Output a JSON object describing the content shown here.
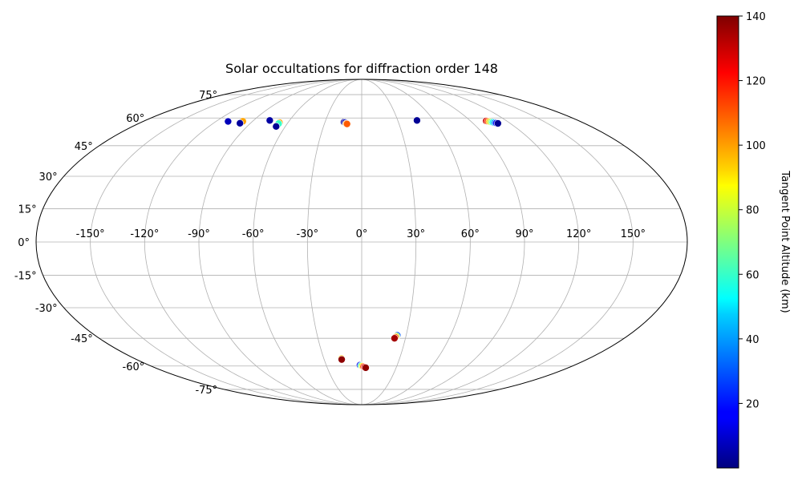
{
  "chart_data": {
    "type": "scatter",
    "projection": "mollweide",
    "title": "Solar occultations for diffraction order 148",
    "lon_ticks": [
      "-150°",
      "-120°",
      "-90°",
      "-60°",
      "-30°",
      "0°",
      "30°",
      "60°",
      "90°",
      "120°",
      "150°"
    ],
    "lon_tick_values": [
      -150,
      -120,
      -90,
      -60,
      -30,
      0,
      30,
      60,
      90,
      120,
      150
    ],
    "lat_ticks": [
      "75°",
      "60°",
      "45°",
      "30°",
      "15°",
      "0°",
      "-15°",
      "-30°",
      "-45°",
      "-60°",
      "-75°"
    ],
    "lat_tick_values": [
      75,
      60,
      45,
      30,
      15,
      0,
      -15,
      -30,
      -45,
      -60,
      -75
    ],
    "grid": true,
    "colorbar": {
      "label": "Tangent Point Altitude (km)",
      "min": 0,
      "max": 140,
      "ticks": [
        20,
        40,
        60,
        80,
        100,
        120,
        140
      ],
      "tick_labels": [
        "20",
        "40",
        "60",
        "80",
        "100",
        "120",
        "140"
      ],
      "colormap": "jet"
    },
    "points": [
      {
        "lon": -110.5,
        "lat": 58.2,
        "alt": 3
      },
      {
        "lon": -110.0,
        "lat": 58.0,
        "alt": 8
      },
      {
        "lon": -98.0,
        "lat": 58.1,
        "alt": 100
      },
      {
        "lon": -98.5,
        "lat": 57.0,
        "alt": 4
      },
      {
        "lon": -76.5,
        "lat": 58.6,
        "alt": 5
      },
      {
        "lon": -67.0,
        "lat": 57.4,
        "alt": 100
      },
      {
        "lon": -67.0,
        "lat": 56.8,
        "alt": 60
      },
      {
        "lon": -67.2,
        "lat": 55.2,
        "alt": 3
      },
      {
        "lon": -14.5,
        "lat": 57.6,
        "alt": 3
      },
      {
        "lon": -13.5,
        "lat": 57.4,
        "alt": 8
      },
      {
        "lon": -12.5,
        "lat": 56.8,
        "alt": 100
      },
      {
        "lon": -11.8,
        "lat": 56.6,
        "alt": 110
      },
      {
        "lon": 46.0,
        "lat": 58.6,
        "alt": 3
      },
      {
        "lon": 103.0,
        "lat": 58.3,
        "alt": 130
      },
      {
        "lon": 104.0,
        "lat": 58.1,
        "alt": 115
      },
      {
        "lon": 105.0,
        "lat": 57.9,
        "alt": 95
      },
      {
        "lon": 106.0,
        "lat": 57.7,
        "alt": 75
      },
      {
        "lon": 107.0,
        "lat": 57.5,
        "alt": 55
      },
      {
        "lon": 108.0,
        "lat": 57.3,
        "alt": 40
      },
      {
        "lon": 109.0,
        "lat": 57.1,
        "alt": 20
      },
      {
        "lon": 110.0,
        "lat": 56.9,
        "alt": 3
      },
      {
        "lon": 24.0,
        "lat": -43.5,
        "alt": 30
      },
      {
        "lon": 23.5,
        "lat": -44.0,
        "alt": 80
      },
      {
        "lon": 23.0,
        "lat": -44.5,
        "alt": 110
      },
      {
        "lon": 22.5,
        "lat": -45.0,
        "alt": 135
      },
      {
        "lon": -16.0,
        "lat": -55.8,
        "alt": 95
      },
      {
        "lon": -16.0,
        "lat": -56.3,
        "alt": 138
      },
      {
        "lon": -1.5,
        "lat": -59.5,
        "alt": 15
      },
      {
        "lon": -0.5,
        "lat": -59.8,
        "alt": 60
      },
      {
        "lon": 0.5,
        "lat": -60.1,
        "alt": 90
      },
      {
        "lon": 1.5,
        "lat": -60.4,
        "alt": 110
      },
      {
        "lon": 2.5,
        "lat": -60.7,
        "alt": 125
      },
      {
        "lon": 3.5,
        "lat": -61.0,
        "alt": 138
      }
    ]
  }
}
